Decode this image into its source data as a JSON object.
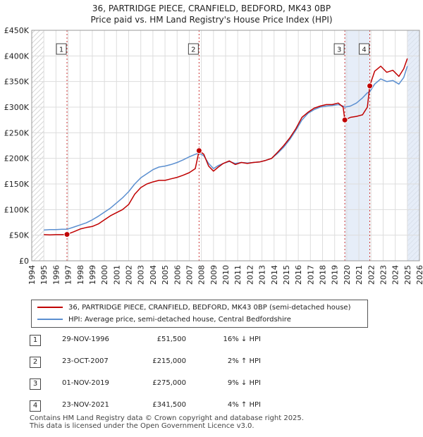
{
  "title": {
    "line1": "36, PARTRIDGE PIECE, CRANFIELD, BEDFORD, MK43 0BP",
    "line2": "Price paid vs. HM Land Registry's House Price Index (HPI)"
  },
  "colors": {
    "price_paid": "#c00000",
    "hpi": "#5b8fd0",
    "shade": "#dce6f5",
    "grid": "#dddddd",
    "marker_border": "#c00000",
    "vline": "#cc3333"
  },
  "chart_data": {
    "type": "line",
    "ylabel": "",
    "xlabel": "",
    "xlim": [
      1994,
      2026
    ],
    "ylim": [
      0,
      450000
    ],
    "x_ticks": [
      1994,
      1995,
      1996,
      1997,
      1998,
      1999,
      2000,
      2001,
      2002,
      2003,
      2004,
      2005,
      2006,
      2007,
      2008,
      2009,
      2010,
      2011,
      2012,
      2013,
      2014,
      2015,
      2016,
      2017,
      2018,
      2019,
      2020,
      2021,
      2022,
      2023,
      2024,
      2025,
      2026
    ],
    "y_ticks": [
      {
        "value": 0,
        "label": "£0"
      },
      {
        "value": 50000,
        "label": "£50K"
      },
      {
        "value": 100000,
        "label": "£100K"
      },
      {
        "value": 150000,
        "label": "£150K"
      },
      {
        "value": 200000,
        "label": "£200K"
      },
      {
        "value": 250000,
        "label": "£250K"
      },
      {
        "value": 300000,
        "label": "£300K"
      },
      {
        "value": 350000,
        "label": "£350K"
      },
      {
        "value": 400000,
        "label": "£400K"
      },
      {
        "value": 450000,
        "label": "£450K"
      }
    ],
    "series": [
      {
        "name": "36, PARTRIDGE PIECE, CRANFIELD, BEDFORD, MK43 0BP (semi-detached house)",
        "x": [
          1995.0,
          1995.5,
          1996.0,
          1996.5,
          1996.91,
          1997.5,
          1998.0,
          1998.5,
          1999.0,
          1999.5,
          2000.0,
          2000.5,
          2001.0,
          2001.5,
          2002.0,
          2002.5,
          2003.0,
          2003.5,
          2004.0,
          2004.5,
          2005.0,
          2005.5,
          2006.0,
          2006.5,
          2007.0,
          2007.5,
          2007.81,
          2008.2,
          2008.6,
          2009.0,
          2009.4,
          2009.8,
          2010.3,
          2010.8,
          2011.3,
          2011.8,
          2012.3,
          2012.8,
          2013.3,
          2013.8,
          2014.3,
          2014.8,
          2015.3,
          2015.8,
          2016.3,
          2016.8,
          2017.3,
          2017.8,
          2018.3,
          2018.8,
          2019.3,
          2019.7,
          2019.84,
          2020.3,
          2020.8,
          2021.3,
          2021.7,
          2021.9,
          2022.3,
          2022.8,
          2023.3,
          2023.8,
          2024.3,
          2024.7,
          2025.0
        ],
        "y": [
          51000,
          50500,
          51000,
          51000,
          51500,
          57000,
          62000,
          65000,
          67000,
          72000,
          80000,
          88000,
          94000,
          100000,
          110000,
          130000,
          143000,
          150000,
          154000,
          157000,
          157000,
          160000,
          163000,
          167000,
          172000,
          180000,
          215000,
          208000,
          185000,
          175000,
          183000,
          190000,
          195000,
          188000,
          192000,
          190000,
          192000,
          193000,
          196000,
          200000,
          212000,
          225000,
          240000,
          258000,
          280000,
          290000,
          298000,
          302000,
          305000,
          305000,
          308000,
          300000,
          275000,
          280000,
          282000,
          285000,
          300000,
          341500,
          370000,
          380000,
          368000,
          372000,
          360000,
          375000,
          395000
        ]
      },
      {
        "name": "HPI: Average price, semi-detached house, Central Bedfordshire",
        "x": [
          1995.0,
          1995.5,
          1996.0,
          1996.5,
          1996.91,
          1997.5,
          1998.0,
          1998.5,
          1999.0,
          1999.5,
          2000.0,
          2000.5,
          2001.0,
          2001.5,
          2002.0,
          2002.5,
          2003.0,
          2003.5,
          2004.0,
          2004.5,
          2005.0,
          2005.5,
          2006.0,
          2006.5,
          2007.0,
          2007.5,
          2007.81,
          2008.2,
          2008.6,
          2009.0,
          2009.4,
          2009.8,
          2010.3,
          2010.8,
          2011.3,
          2011.8,
          2012.3,
          2012.8,
          2013.3,
          2013.8,
          2014.3,
          2014.8,
          2015.3,
          2015.8,
          2016.3,
          2016.8,
          2017.3,
          2017.8,
          2018.3,
          2018.8,
          2019.3,
          2019.7,
          2019.84,
          2020.3,
          2020.8,
          2021.3,
          2021.7,
          2021.9,
          2022.3,
          2022.8,
          2023.3,
          2023.8,
          2024.3,
          2024.7,
          2025.0
        ],
        "y": [
          60000,
          61000,
          61000,
          61500,
          61500,
          66000,
          70000,
          74000,
          80000,
          87000,
          95000,
          103000,
          113000,
          123000,
          135000,
          150000,
          162000,
          170000,
          178000,
          183000,
          185000,
          188000,
          192000,
          197000,
          203000,
          208000,
          210000,
          205000,
          190000,
          180000,
          186000,
          190000,
          194000,
          190000,
          192000,
          191000,
          192000,
          193000,
          196000,
          200000,
          210000,
          222000,
          237000,
          255000,
          275000,
          288000,
          295000,
          300000,
          302000,
          303000,
          305000,
          302000,
          300000,
          302000,
          308000,
          318000,
          328000,
          330000,
          345000,
          355000,
          350000,
          352000,
          345000,
          358000,
          380000
        ]
      }
    ],
    "sales": [
      {
        "id": "1",
        "x": 1996.91,
        "y": 51500
      },
      {
        "id": "2",
        "x": 2007.81,
        "y": 215000
      },
      {
        "id": "3",
        "x": 2019.84,
        "y": 275000
      },
      {
        "id": "4",
        "x": 2021.9,
        "y": 341500
      }
    ],
    "shaded_ranges": [
      [
        2019.84,
        2021.9
      ],
      [
        2025.0,
        2026.0
      ]
    ],
    "hatched_ranges": [
      [
        1994.0,
        1995.0
      ],
      [
        2025.0,
        2026.0
      ]
    ]
  },
  "legend": {
    "entries": [
      {
        "label": "36, PARTRIDGE PIECE, CRANFIELD, BEDFORD, MK43 0BP (semi-detached house)"
      },
      {
        "label": "HPI: Average price, semi-detached house, Central Bedfordshire"
      }
    ]
  },
  "sales_table": [
    {
      "num": "1",
      "date": "29-NOV-1996",
      "price": "£51,500",
      "hpi": "16% ↓ HPI"
    },
    {
      "num": "2",
      "date": "23-OCT-2007",
      "price": "£215,000",
      "hpi": "2% ↑ HPI"
    },
    {
      "num": "3",
      "date": "01-NOV-2019",
      "price": "£275,000",
      "hpi": "9% ↓ HPI"
    },
    {
      "num": "4",
      "date": "23-NOV-2021",
      "price": "£341,500",
      "hpi": "4% ↑ HPI"
    }
  ],
  "footer": {
    "line1": "Contains HM Land Registry data © Crown copyright and database right 2025.",
    "line2": "This data is licensed under the Open Government Licence v3.0."
  }
}
